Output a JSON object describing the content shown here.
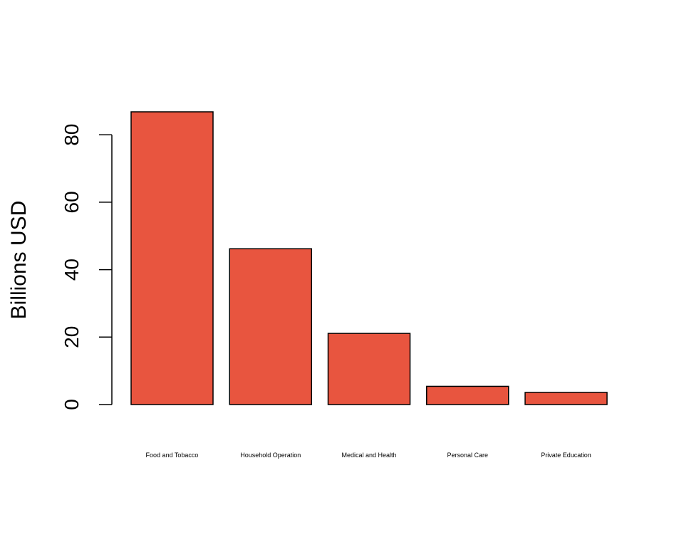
{
  "chart_data": {
    "type": "bar",
    "title": "",
    "xlabel": "",
    "ylabel": "Billions USD",
    "categories": [
      "Food and Tobacco",
      "Household Operation",
      "Medical and Health",
      "Personal Care",
      "Private Education"
    ],
    "values": [
      86.8,
      46.2,
      21.1,
      5.4,
      3.6
    ],
    "ylim": [
      0,
      86.8
    ],
    "yticks": [
      0,
      20,
      40,
      60,
      80
    ],
    "ytick_labels": [
      "0",
      "20",
      "40",
      "60",
      "80"
    ],
    "grid": false,
    "legend": "none",
    "bar_color": "#E8553F",
    "bar_edge_color": "#000000"
  }
}
